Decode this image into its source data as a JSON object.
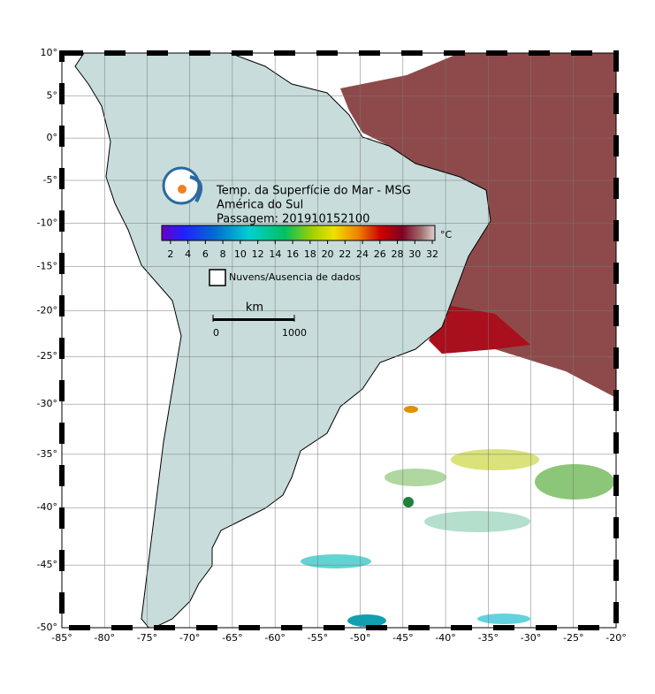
{
  "map": {
    "title_lines": [
      "Temp. da Superfície do Mar - MSG",
      "América do Sul",
      "Passagem: 201910152100"
    ],
    "xlim": [
      -85,
      -20
    ],
    "ylim": [
      -50,
      10
    ],
    "xticks": [
      {
        "value": -85,
        "label": "-85°"
      },
      {
        "value": -80,
        "label": "-80°"
      },
      {
        "value": -75,
        "label": "-75°"
      },
      {
        "value": -70,
        "label": "-70°"
      },
      {
        "value": -65,
        "label": "-65°"
      },
      {
        "value": -60,
        "label": "-60°"
      },
      {
        "value": -55,
        "label": "-55°"
      },
      {
        "value": -50,
        "label": "-50°"
      },
      {
        "value": -45,
        "label": "-45°"
      },
      {
        "value": -40,
        "label": "-40°"
      },
      {
        "value": -35,
        "label": "-35°"
      },
      {
        "value": -30,
        "label": "-30°"
      },
      {
        "value": -25,
        "label": "-25°"
      },
      {
        "value": -20,
        "label": "-20°"
      }
    ],
    "yticks": [
      {
        "value": 10,
        "label": "10°"
      },
      {
        "value": 5,
        "label": "5°"
      },
      {
        "value": 0,
        "label": "0°"
      },
      {
        "value": -5,
        "label": "-5°"
      },
      {
        "value": -10,
        "label": "-10°"
      },
      {
        "value": -15,
        "label": "-15°"
      },
      {
        "value": -20,
        "label": "-20°"
      },
      {
        "value": -25,
        "label": "-25°"
      },
      {
        "value": -30,
        "label": "-30°"
      },
      {
        "value": -35,
        "label": "-35°"
      },
      {
        "value": -40,
        "label": "-40°"
      },
      {
        "value": -45,
        "label": "-45°"
      },
      {
        "value": -50,
        "label": "-50°"
      }
    ],
    "colorbar": {
      "unit": "°C",
      "range": [
        1,
        32.3
      ],
      "ticks": [
        2,
        4,
        6,
        8,
        10,
        12,
        14,
        16,
        18,
        20,
        22,
        24,
        26,
        28,
        30,
        32
      ]
    },
    "legend": "Nuvens/Ausencia de dados",
    "scale": {
      "unit": "km",
      "ticks": [
        {
          "value": 0,
          "label": "0"
        },
        {
          "value": 1000,
          "label": "1000"
        }
      ]
    }
  }
}
